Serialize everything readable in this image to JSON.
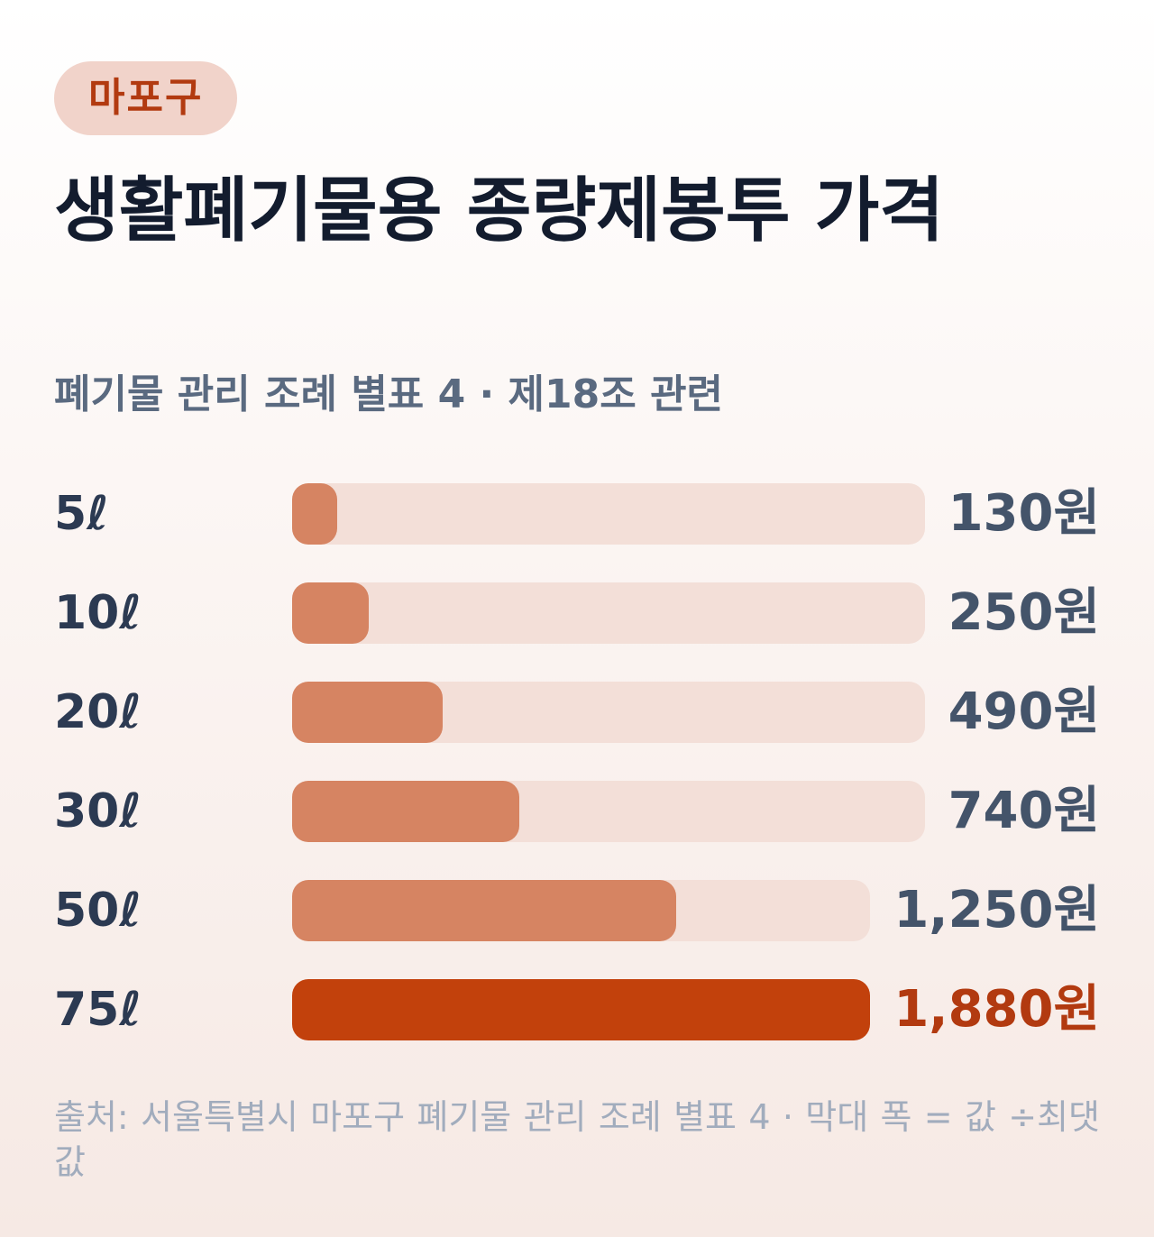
{
  "badge": "마포구",
  "title": "생활폐기물용 종량제봉투 가격",
  "subtitle": "폐기물 관리 조례 별표 4 · 제18조 관련",
  "source": "출처: 서울특별시 마포구 폐기물 관리 조례 별표 4 · 막대 폭 = 값 ÷최댓값",
  "colors": {
    "bar": "#d68462",
    "bar_max": "#c2410c",
    "track": "#f3dfd8",
    "value_max_text": "#b23a10"
  },
  "chart_data": {
    "type": "bar",
    "orientation": "horizontal",
    "categories": [
      "5ℓ",
      "10ℓ",
      "20ℓ",
      "30ℓ",
      "50ℓ",
      "75ℓ"
    ],
    "values": [
      130,
      250,
      490,
      740,
      1250,
      1880
    ],
    "value_labels": [
      "130원",
      "250원",
      "490원",
      "740원",
      "1,250원",
      "1,880원"
    ],
    "highlight_index": 5,
    "xlim": [
      0,
      1880
    ]
  }
}
